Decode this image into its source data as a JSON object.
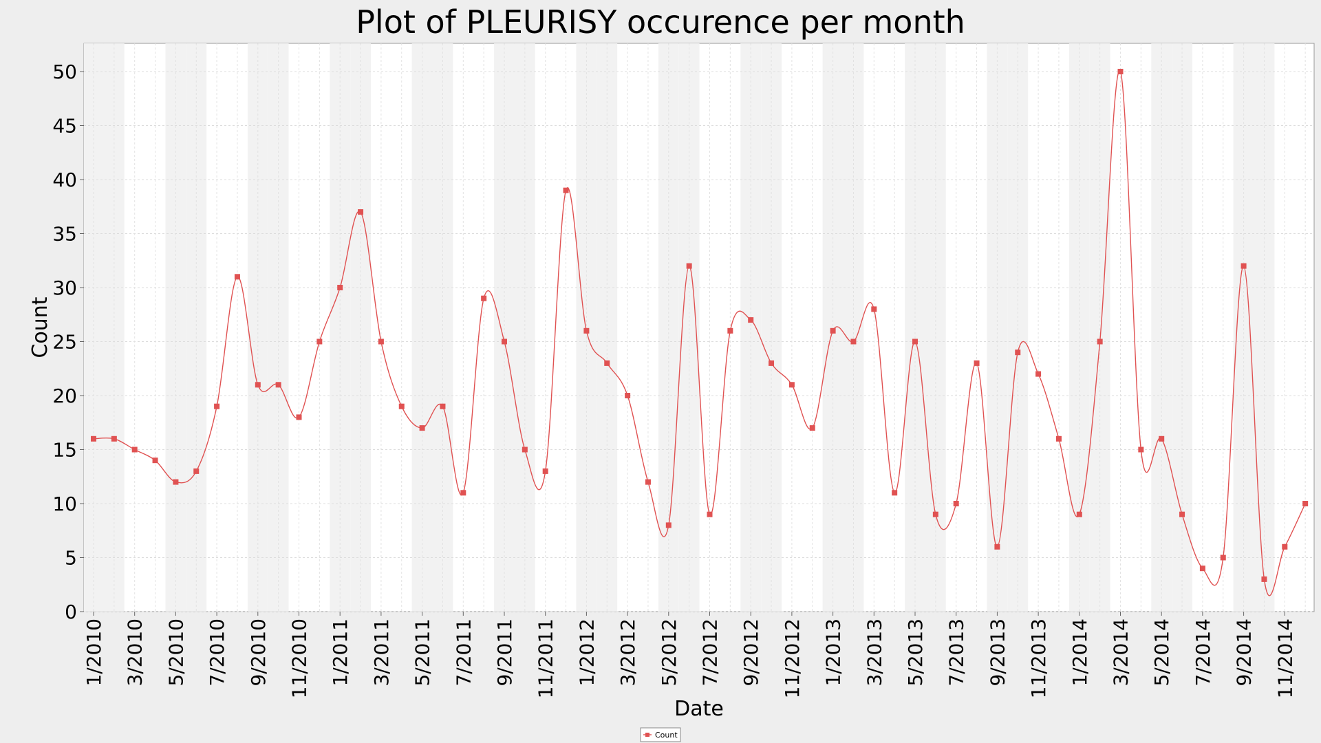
{
  "chart_data": {
    "type": "line",
    "title": "Plot of PLEURISY occurence per month",
    "xlabel": "Date",
    "ylabel": "Count",
    "ylim": [
      0,
      52
    ],
    "yticks": [
      0,
      5,
      10,
      15,
      20,
      25,
      30,
      35,
      40,
      45,
      50
    ],
    "x_tick_labels": [
      "1/2010",
      "3/2010",
      "5/2010",
      "7/2010",
      "9/2010",
      "11/2010",
      "1/2011",
      "3/2011",
      "5/2011",
      "7/2011",
      "9/2011",
      "11/2011",
      "1/2012",
      "3/2012",
      "5/2012",
      "7/2012",
      "9/2012",
      "11/2012",
      "1/2013",
      "3/2013",
      "5/2013",
      "7/2013",
      "9/2013",
      "11/2013",
      "1/2014",
      "3/2014",
      "5/2014",
      "7/2014",
      "9/2014",
      "11/2014"
    ],
    "x": [
      "1/2010",
      "2/2010",
      "3/2010",
      "4/2010",
      "5/2010",
      "6/2010",
      "7/2010",
      "8/2010",
      "9/2010",
      "10/2010",
      "11/2010",
      "12/2010",
      "1/2011",
      "2/2011",
      "3/2011",
      "4/2011",
      "5/2011",
      "6/2011",
      "7/2011",
      "8/2011",
      "9/2011",
      "10/2011",
      "11/2011",
      "12/2011",
      "1/2012",
      "2/2012",
      "3/2012",
      "4/2012",
      "5/2012",
      "6/2012",
      "7/2012",
      "8/2012",
      "9/2012",
      "10/2012",
      "11/2012",
      "12/2012",
      "1/2013",
      "2/2013",
      "3/2013",
      "4/2013",
      "5/2013",
      "6/2013",
      "7/2013",
      "8/2013",
      "9/2013",
      "10/2013",
      "11/2013",
      "12/2013",
      "1/2014",
      "2/2014",
      "3/2014",
      "4/2014",
      "5/2014",
      "6/2014",
      "7/2014",
      "8/2014",
      "9/2014",
      "10/2014",
      "11/2014",
      "12/2014"
    ],
    "series": [
      {
        "name": "Count",
        "color": "#e05252",
        "values": [
          16,
          16,
          15,
          14,
          12,
          13,
          19,
          31,
          21,
          21,
          18,
          25,
          30,
          37,
          25,
          19,
          17,
          19,
          11,
          29,
          25,
          15,
          13,
          39,
          26,
          23,
          20,
          12,
          8,
          32,
          9,
          26,
          27,
          23,
          21,
          17,
          26,
          25,
          28,
          11,
          25,
          9,
          10,
          23,
          6,
          24,
          22,
          16,
          9,
          25,
          50,
          15,
          16,
          9,
          4,
          5,
          32,
          3,
          6,
          10
        ]
      }
    ],
    "grid": true,
    "legend_position": "bottom-center"
  }
}
